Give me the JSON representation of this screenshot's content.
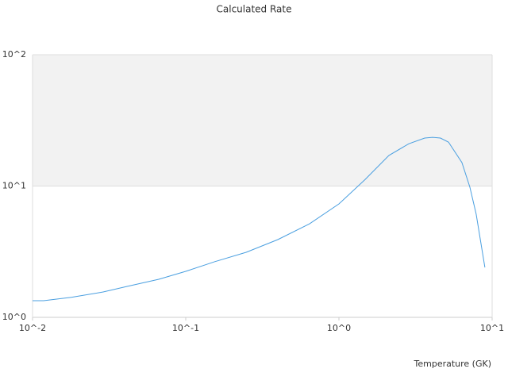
{
  "chart_data": {
    "type": "line",
    "title": "Calculated Rate",
    "x_label": "Temperature (GK)",
    "x": [
      0.01,
      0.0118,
      0.0179,
      0.0289,
      0.0414,
      0.0667,
      0.1,
      0.154,
      0.248,
      0.399,
      0.643,
      1,
      1.48,
      2.12,
      2.86,
      3.63,
      4.09,
      4.6,
      5.19,
      6.35,
      7.16,
      7.87,
      8.97
    ],
    "series": [
      {
        "color": "#4a9fe0",
        "values": [
          1.34,
          1.34,
          1.42,
          1.56,
          1.72,
          1.95,
          2.24,
          2.65,
          3.13,
          3.91,
          5.16,
          7.31,
          11.2,
          17.1,
          21.0,
          23.2,
          23.5,
          23.2,
          21.6,
          15.1,
          9.8,
          6.1,
          2.4
        ]
      }
    ],
    "xscale": "log",
    "yscale": "log",
    "xlim": [
      0.01,
      10
    ],
    "ylim": [
      1,
      100
    ],
    "xticks": [
      {
        "value": 0.01,
        "label": "10^-2"
      },
      {
        "value": 0.1,
        "label": "10^-1"
      },
      {
        "value": 1,
        "label": "10^0"
      },
      {
        "value": 10,
        "label": "10^1"
      }
    ],
    "yticks": [
      {
        "value": 1,
        "label": "10^0"
      },
      {
        "value": 10,
        "label": "10^1"
      },
      {
        "value": 100,
        "label": "10^2"
      }
    ],
    "grid": true,
    "band_color": "#f2f2f2"
  }
}
